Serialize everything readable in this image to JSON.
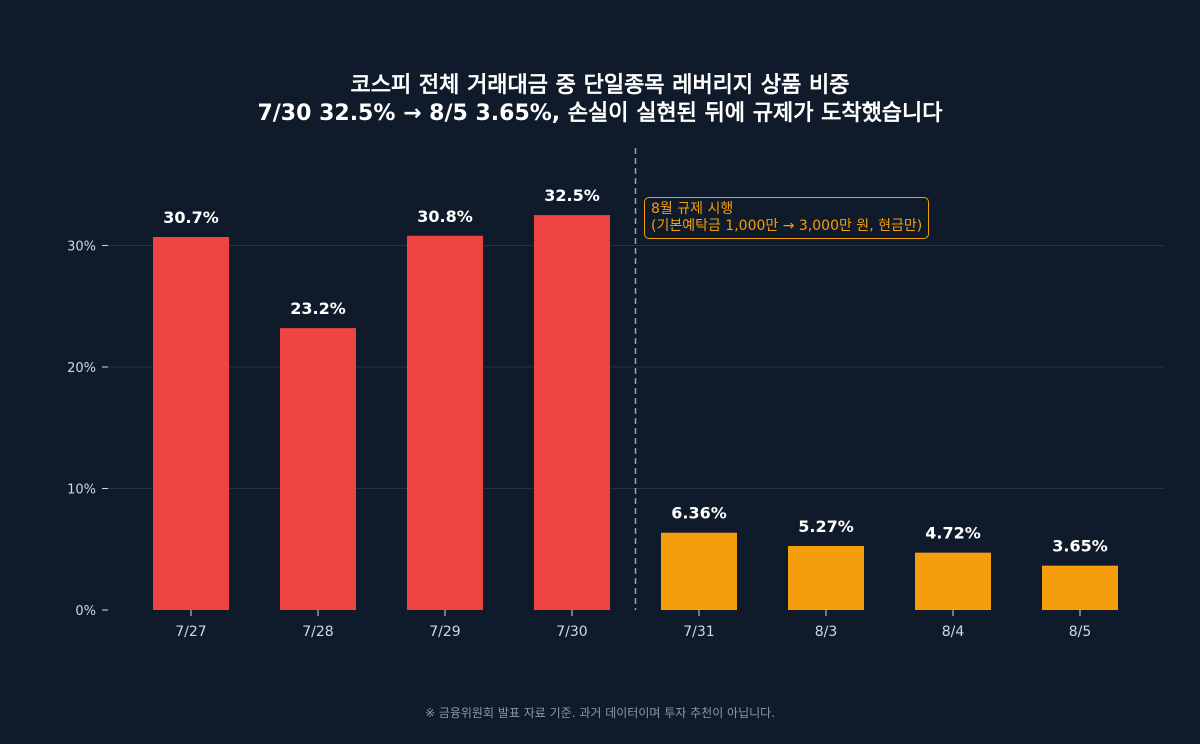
{
  "title": {
    "line1": "코스피 전체 거래대금 중 단일종목 레버리지 상품 비중",
    "line2": "7/30 32.5% → 8/5 3.65%, 손실이 실현된 뒤에 규제가 도착했습니다"
  },
  "annotation": {
    "line1": "8월 규제 시행",
    "line2": "(기본예탁금 1,000만 → 3,000만 원, 현금만)"
  },
  "footnote": "※ 금융위원회 발표 자료 기준. 과거 데이터이며 투자 추천이 아닙니다.",
  "colors": {
    "background": "#0f1b2a",
    "before": "#ef4444",
    "after": "#f59e0b",
    "grid": "#243245",
    "axis_text": "#d0d7e2",
    "divider": "#9aa6b8"
  },
  "chart_data": {
    "type": "bar",
    "categories": [
      "7/27",
      "7/28",
      "7/29",
      "7/30",
      "7/31",
      "8/3",
      "8/4",
      "8/5"
    ],
    "values": [
      30.7,
      23.2,
      30.8,
      32.5,
      6.36,
      5.27,
      4.72,
      3.65
    ],
    "value_labels": [
      "30.7%",
      "23.2%",
      "30.8%",
      "32.5%",
      "6.36%",
      "5.27%",
      "4.72%",
      "3.65%"
    ],
    "groups": [
      "before",
      "before",
      "before",
      "before",
      "after",
      "after",
      "after",
      "after"
    ],
    "yticks": [
      0,
      10,
      20,
      30
    ],
    "ytick_labels": [
      "0%",
      "10%",
      "20%",
      "30%"
    ],
    "ylim": [
      0,
      38
    ],
    "grid": true,
    "divider_between": [
      "7/30",
      "7/31"
    ],
    "xlabel": "",
    "ylabel": ""
  }
}
